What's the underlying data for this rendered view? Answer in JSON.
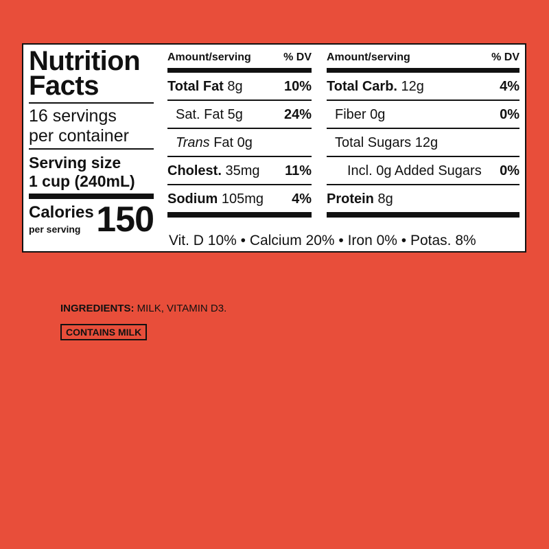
{
  "label": {
    "title_line1": "Nutrition",
    "title_line2": "Facts",
    "servings_line1": "16 servings",
    "servings_line2": "per container",
    "serving_size_label": "Serving size",
    "serving_size_value": "1 cup (240mL)",
    "calories_label": "Calories",
    "calories_sub": "per serving",
    "calories_value": "150",
    "header_amount": "Amount/serving",
    "header_dv": "% DV",
    "left_rows": [
      {
        "name": "Total Fat",
        "amount": "8g",
        "dv": "10%"
      },
      {
        "name": "Sat. Fat",
        "amount": "5g",
        "dv": "24%"
      },
      {
        "name": "Trans",
        "amount": "Fat 0g",
        "dv": ""
      },
      {
        "name": "Cholest.",
        "amount": "35mg",
        "dv": "11%"
      },
      {
        "name": "Sodium",
        "amount": "105mg",
        "dv": "4%"
      }
    ],
    "right_rows": [
      {
        "name": "Total Carb.",
        "amount": "12g",
        "dv": "4%"
      },
      {
        "name": "Fiber",
        "amount": "0g",
        "dv": "0%"
      },
      {
        "name": "Total Sugars",
        "amount": "12g",
        "dv": ""
      },
      {
        "name": "Incl. 0g Added Sugars",
        "amount": "",
        "dv": "0%"
      },
      {
        "name": "Protein",
        "amount": "8g",
        "dv": ""
      }
    ],
    "vitamins": "Vit. D 10% • Calcium 20% • Iron 0% • Potas. 8%"
  },
  "ingredients": {
    "label": "INGREDIENTS:",
    "text": " MILK, VITAMIN D3.",
    "allergen": "CONTAINS MILK"
  },
  "colors": {
    "background": "#E84E3A",
    "panel": "#FFFFFF",
    "ink": "#111111"
  }
}
